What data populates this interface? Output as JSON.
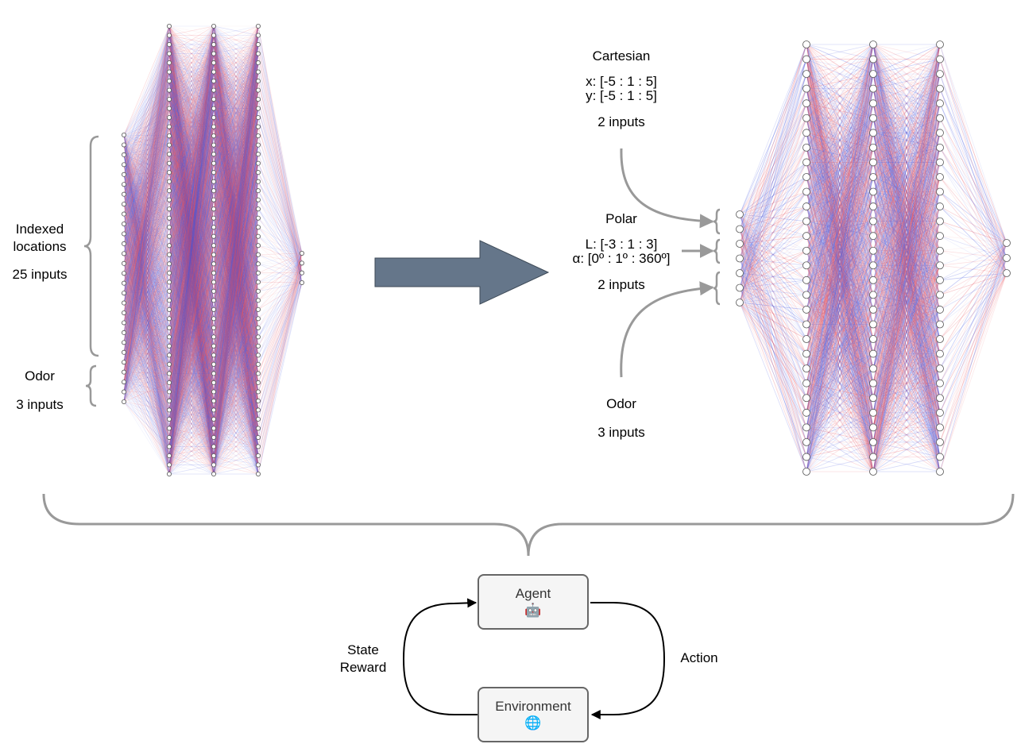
{
  "left_network": {
    "indexed_label": "Indexed\nlocations",
    "indexed_inputs": "25 inputs",
    "odor_label": "Odor",
    "odor_inputs": "3 inputs",
    "input_nodes": 28,
    "hidden_layers": [
      50,
      50,
      50
    ],
    "output_nodes": 4
  },
  "right_network": {
    "cartesian": {
      "title": "Cartesian",
      "x_range": "x: [-5 : 1 : 5]",
      "y_range": "y: [-5 : 1 : 5]",
      "inputs": "2 inputs"
    },
    "polar": {
      "title": "Polar",
      "l_range": "L: [-3 : 1 : 3]",
      "alpha_range": "α: [0º : 1º : 360º]",
      "inputs": "2 inputs"
    },
    "odor": {
      "title": "Odor",
      "inputs": "3 inputs"
    },
    "input_nodes": 7,
    "hidden_layers": [
      30,
      30,
      30
    ],
    "output_nodes": 3
  },
  "rl_loop": {
    "agent": {
      "label": "Agent",
      "icon": "robot-icon",
      "glyph": "🤖"
    },
    "environment": {
      "label": "Environment",
      "icon": "globe-icon",
      "glyph": "🌐"
    },
    "state_reward": "State\nReward",
    "action": "Action"
  },
  "colors": {
    "red": "#e8505b",
    "blue": "#4a5be0",
    "arrow": "#65768a",
    "brace": "#999999",
    "node_stroke": "#555555"
  }
}
